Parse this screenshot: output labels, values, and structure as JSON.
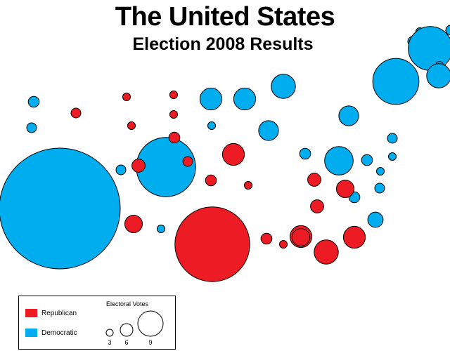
{
  "title": "The  United States",
  "subtitle": "Election 2008 Results",
  "colors": {
    "republican": "#ed1c24",
    "democratic": "#00aeef"
  },
  "legend": {
    "republican_label": "Republican",
    "democratic_label": "Democratic",
    "electoral_votes_title": "Electoral Votes",
    "scale": [
      3,
      6,
      9
    ]
  },
  "states": [
    {
      "party": "D",
      "votes": 3
    },
    {
      "party": "D",
      "votes": 4
    },
    {
      "party": "D",
      "votes": 4
    },
    {
      "party": "D",
      "votes": 20
    },
    {
      "party": "D",
      "votes": 21
    },
    {
      "party": "D",
      "votes": 3
    },
    {
      "party": "D",
      "votes": 11
    },
    {
      "party": "D",
      "votes": 5
    },
    {
      "party": "D",
      "votes": 10
    },
    {
      "party": "D",
      "votes": 4
    },
    {
      "party": "D",
      "votes": 10
    },
    {
      "party": "D",
      "votes": 3
    },
    {
      "party": "D",
      "votes": 11
    },
    {
      "party": "D",
      "votes": 5
    },
    {
      "party": "D",
      "votes": 3
    },
    {
      "party": "D",
      "votes": 55
    },
    {
      "party": "D",
      "votes": 3
    },
    {
      "party": "D",
      "votes": 9
    },
    {
      "party": "D",
      "votes": 4
    },
    {
      "party": "D",
      "votes": 13
    },
    {
      "party": "D",
      "votes": 9
    },
    {
      "party": "D",
      "votes": 5
    },
    {
      "party": "D",
      "votes": 27
    },
    {
      "party": "D",
      "votes": 4
    },
    {
      "party": "D",
      "votes": 7
    },
    {
      "party": "D",
      "votes": 3
    },
    {
      "party": "D",
      "votes": 4
    },
    {
      "party": "D",
      "votes": 5
    },
    {
      "party": "D",
      "votes": 3
    },
    {
      "party": "R",
      "votes": 3
    },
    {
      "party": "R",
      "votes": 3
    },
    {
      "party": "R",
      "votes": 3
    },
    {
      "party": "R",
      "votes": 3
    },
    {
      "party": "R",
      "votes": 4
    },
    {
      "party": "R",
      "votes": 5
    },
    {
      "party": "R",
      "votes": 4
    },
    {
      "party": "R",
      "votes": 10
    },
    {
      "party": "R",
      "votes": 5
    },
    {
      "party": "R",
      "votes": 6
    },
    {
      "party": "R",
      "votes": 3
    },
    {
      "party": "R",
      "votes": 6
    },
    {
      "party": "R",
      "votes": 11
    },
    {
      "party": "R",
      "votes": 3
    },
    {
      "party": "R",
      "votes": 10
    },
    {
      "party": "R",
      "votes": 8
    },
    {
      "party": "R",
      "votes": 34
    },
    {
      "party": "R",
      "votes": 6
    },
    {
      "party": "R",
      "votes": 5
    },
    {
      "party": "R",
      "votes": 8
    },
    {
      "party": "R",
      "votes": 10
    },
    {
      "party": "R",
      "votes": 8
    }
  ]
}
